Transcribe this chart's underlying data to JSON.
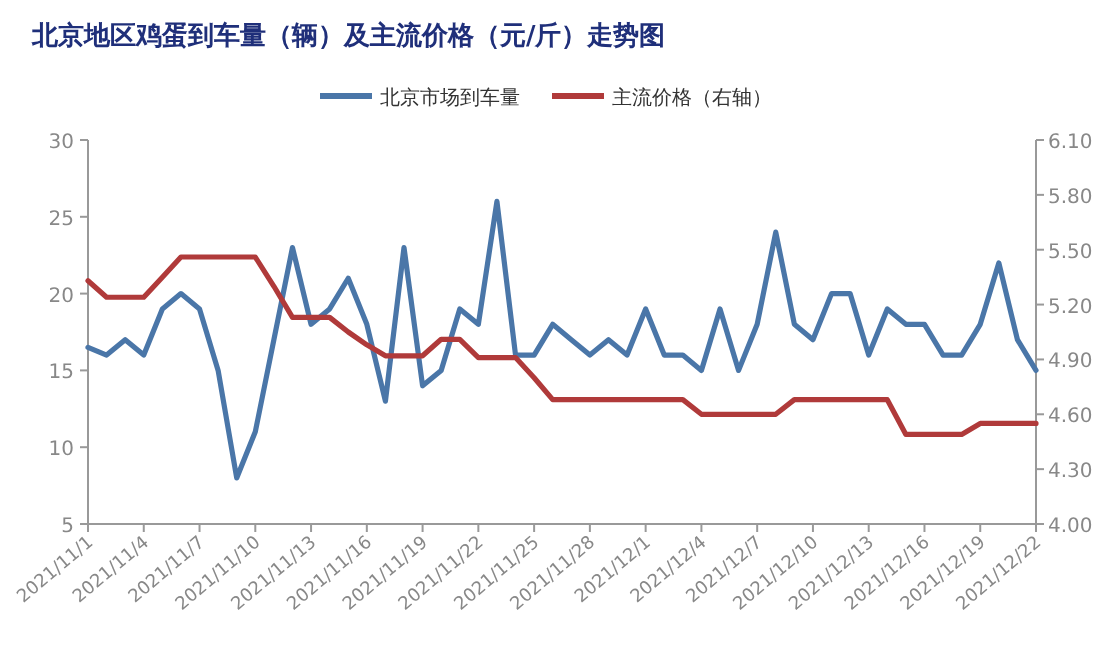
{
  "chart_data": {
    "type": "line",
    "title": "北京地区鸡蛋到车量（辆）及主流价格（元/斤）走势图",
    "x": [
      "2021-11-01",
      "2021-11-02",
      "2021-11-03",
      "2021-11-04",
      "2021-11-05",
      "2021-11-06",
      "2021-11-07",
      "2021-11-08",
      "2021-11-09",
      "2021-11-10",
      "2021-11-11",
      "2021-11-12",
      "2021-11-13",
      "2021-11-14",
      "2021-11-15",
      "2021-11-16",
      "2021-11-17",
      "2021-11-18",
      "2021-11-19",
      "2021-11-20",
      "2021-11-21",
      "2021-11-22",
      "2021-11-23",
      "2021-11-24",
      "2021-11-25",
      "2021-11-26",
      "2021-11-27",
      "2021-11-28",
      "2021-11-29",
      "2021-11-30",
      "2021-12-01",
      "2021-12-02",
      "2021-12-03",
      "2021-12-04",
      "2021-12-05",
      "2021-12-06",
      "2021-12-07",
      "2021-12-08",
      "2021-12-09",
      "2021-12-10",
      "2021-12-11",
      "2021-12-12",
      "2021-12-13",
      "2021-12-14",
      "2021-12-15",
      "2021-12-16",
      "2021-12-17",
      "2021-12-18",
      "2021-12-19",
      "2021-12-20",
      "2021-12-21",
      "2021-12-22"
    ],
    "series": [
      {
        "name": "北京市场到车量",
        "color": "#4a76a8",
        "values": [
          16.5,
          16,
          17,
          16,
          19,
          20,
          19,
          15,
          8,
          11,
          17,
          23,
          18,
          19,
          21,
          18,
          13,
          23,
          14,
          15,
          19,
          18,
          26,
          16,
          16,
          18,
          17,
          16,
          17,
          16,
          19,
          16,
          16,
          15,
          19,
          15,
          18,
          24,
          18,
          17,
          20,
          20,
          16,
          19,
          18,
          18,
          16,
          16,
          18,
          22,
          17,
          15
        ]
      },
      {
        "name": "主流价格（右轴）",
        "color": "#b03a3a",
        "axis": "y2",
        "values": [
          5.33,
          5.24,
          5.24,
          5.24,
          5.35,
          5.46,
          5.46,
          5.46,
          5.46,
          5.46,
          5.3,
          5.13,
          5.13,
          5.13,
          5.05,
          4.98,
          4.92,
          4.92,
          4.92,
          5.01,
          5.01,
          4.91,
          4.91,
          4.91,
          4.8,
          4.68,
          4.68,
          4.68,
          4.68,
          4.68,
          4.68,
          4.68,
          4.68,
          4.6,
          4.6,
          4.6,
          4.6,
          4.6,
          4.68,
          4.68,
          4.68,
          4.68,
          4.68,
          4.68,
          4.49,
          4.49,
          4.49,
          4.49,
          4.55,
          4.55,
          4.55,
          4.55
        ]
      }
    ],
    "xlim": [
      "2021-11-01",
      "2021-12-22"
    ],
    "xticks": [
      {
        "value": "2021-11-01",
        "label": "2021/11/1"
      },
      {
        "value": "2021-11-04",
        "label": "2021/11/4"
      },
      {
        "value": "2021-11-07",
        "label": "2021/11/7"
      },
      {
        "value": "2021-11-10",
        "label": "2021/11/10"
      },
      {
        "value": "2021-11-13",
        "label": "2021/11/13"
      },
      {
        "value": "2021-11-16",
        "label": "2021/11/16"
      },
      {
        "value": "2021-11-19",
        "label": "2021/11/19"
      },
      {
        "value": "2021-11-22",
        "label": "2021/11/22"
      },
      {
        "value": "2021-11-25",
        "label": "2021/11/25"
      },
      {
        "value": "2021-11-28",
        "label": "2021/11/28"
      },
      {
        "value": "2021-12-01",
        "label": "2021/12/1"
      },
      {
        "value": "2021-12-04",
        "label": "2021/12/4"
      },
      {
        "value": "2021-12-07",
        "label": "2021/12/7"
      },
      {
        "value": "2021-12-10",
        "label": "2021/12/10"
      },
      {
        "value": "2021-12-13",
        "label": "2021/12/13"
      },
      {
        "value": "2021-12-16",
        "label": "2021/12/16"
      },
      {
        "value": "2021-12-19",
        "label": "2021/12/19"
      },
      {
        "value": "2021-12-22",
        "label": "2021/12/22"
      }
    ],
    "ylim": [
      5,
      30
    ],
    "yticks": [
      5,
      10,
      15,
      20,
      25,
      30
    ],
    "y2lim": [
      4.0,
      6.1
    ],
    "y2ticks": [
      {
        "value": 4.0,
        "label": "4.00"
      },
      {
        "value": 4.3,
        "label": "4.30"
      },
      {
        "value": 4.6,
        "label": "4.60"
      },
      {
        "value": 4.9,
        "label": "4.90"
      },
      {
        "value": 5.2,
        "label": "5.20"
      },
      {
        "value": 5.5,
        "label": "5.50"
      },
      {
        "value": 5.8,
        "label": "5.80"
      },
      {
        "value": 6.1,
        "label": "6.10"
      }
    ],
    "grid": false,
    "legend": "top",
    "marker": "none",
    "line_style": "solid"
  }
}
